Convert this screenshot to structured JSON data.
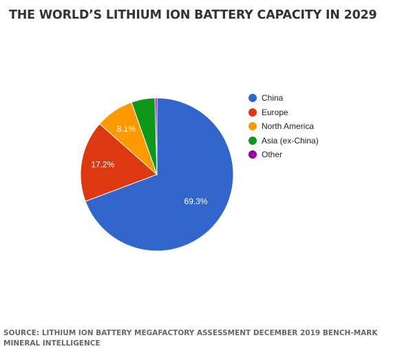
{
  "title": "THE WORLD’S LITHIUM ION BATTERY CAPACITY IN 2029",
  "source": "SOURCE: LITHIUM ION BATTERY MEGAFACTORY ASSESSMENT DECEMBER 2019 BENCH-MARK MINERAL INTELLIGENCE",
  "chart_data": {
    "type": "pie",
    "title": "THE WORLD’S LITHIUM ION BATTERY CAPACITY IN 2029",
    "categories": [
      "China",
      "Europe",
      "North America",
      "Asia (ex-China)",
      "Other"
    ],
    "values": [
      69.3,
      17.2,
      8.1,
      5.0,
      0.4
    ],
    "labels": [
      "69.3%",
      "17.2%",
      "8.1%",
      "",
      ""
    ],
    "colors": [
      "#3366cc",
      "#dc3912",
      "#ff9900",
      "#109618",
      "#990099"
    ],
    "legend_position": "right",
    "start": "top, clockwise"
  }
}
